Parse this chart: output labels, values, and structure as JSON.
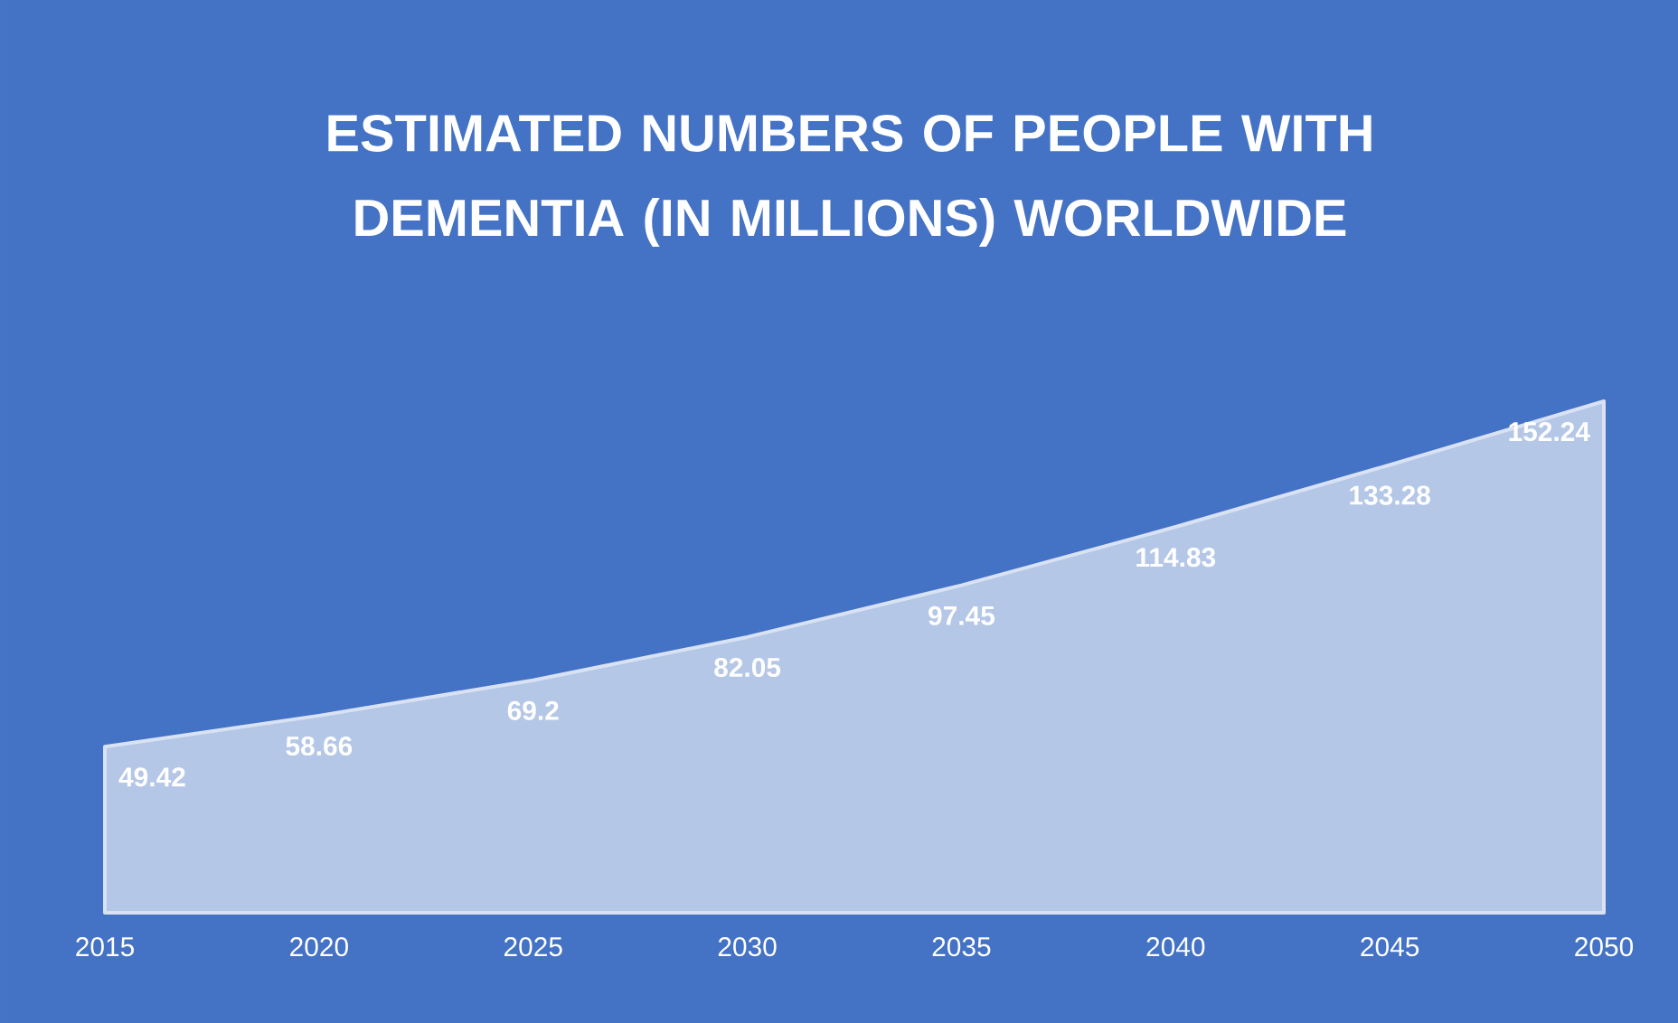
{
  "chart_data": {
    "type": "area",
    "title": "ESTIMATED NUMBERS OF PEOPLE WITH DEMENTIA (IN MILLIONS) WORLDWIDE",
    "categories": [
      "2015",
      "2020",
      "2025",
      "2030",
      "2035",
      "2040",
      "2045",
      "2050"
    ],
    "values": [
      49.42,
      58.66,
      69.2,
      82.05,
      97.45,
      114.83,
      133.28,
      152.24
    ],
    "color": "#b4c7e7",
    "data_labels": true
  }
}
